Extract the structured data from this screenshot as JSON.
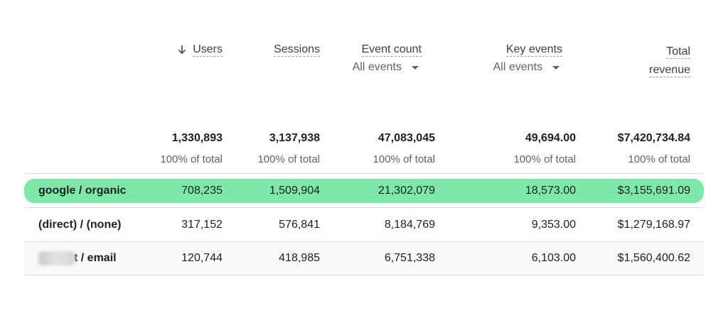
{
  "columns": {
    "users": {
      "label": "Users",
      "sort_icon": "arrow-down-icon"
    },
    "sessions": {
      "label": "Sessions"
    },
    "event_count": {
      "label": "Event count",
      "filter": "All events"
    },
    "key_events": {
      "label": "Key events",
      "filter": "All events"
    },
    "total_revenue": {
      "label_line1": "Total",
      "label_line2": "revenue"
    }
  },
  "totals": {
    "users": "1,330,893",
    "sessions": "3,137,938",
    "event_count": "47,083,045",
    "key_events": "49,694.00",
    "total_revenue": "$7,420,734.84",
    "pct": "100% of total"
  },
  "rows": [
    {
      "source": "google / organic",
      "users": "708,235",
      "sessions": "1,509,904",
      "event_count": "21,302,079",
      "key_events": "18,573.00",
      "total_revenue": "$3,155,691.09"
    },
    {
      "source": "(direct) / (none)",
      "users": "317,152",
      "sessions": "576,841",
      "event_count": "8,184,769",
      "key_events": "9,353.00",
      "total_revenue": "$1,279,168.97"
    },
    {
      "source": "t / email",
      "users": "120,744",
      "sessions": "418,985",
      "event_count": "6,751,338",
      "key_events": "6,103.00",
      "total_revenue": "$1,560,400.62"
    }
  ],
  "colors": {
    "highlight": "#7de8a8",
    "alt_row": "#f8f9fa",
    "divider": "#dadce0"
  }
}
